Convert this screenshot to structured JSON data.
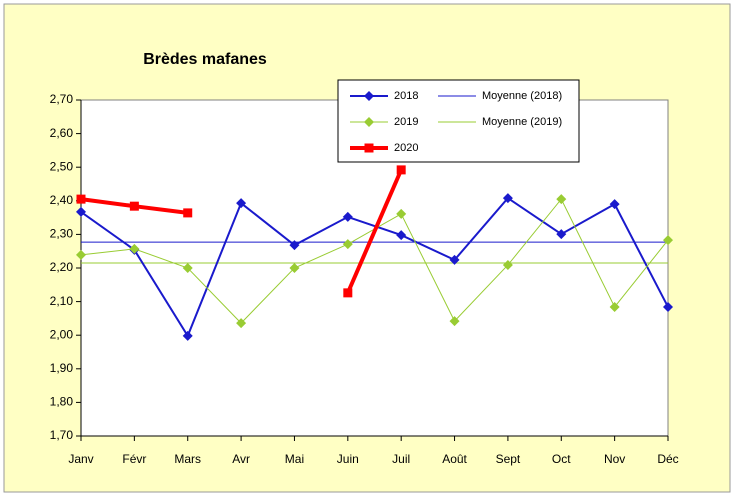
{
  "chart_data": {
    "type": "line",
    "title": "Brèdes mafanes",
    "categories": [
      "Janv",
      "Févr",
      "Mars",
      "Avr",
      "Mai",
      "Juin",
      "Juil",
      "Août",
      "Sept",
      "Oct",
      "Nov",
      "Déc"
    ],
    "series": [
      {
        "name": "2018",
        "color": "#1a1acc",
        "marker": "diamond",
        "values": [
          2.367,
          2.254,
          1.998,
          2.393,
          2.268,
          2.352,
          2.298,
          2.224,
          2.408,
          2.301,
          2.39,
          2.084
        ]
      },
      {
        "name": "2019",
        "color": "#99cc33",
        "marker": "diamond",
        "values": [
          2.239,
          2.257,
          2.2,
          2.036,
          2.2,
          2.271,
          2.361,
          2.042,
          2.209,
          2.405,
          2.084,
          2.283
        ]
      },
      {
        "name": "2020",
        "color": "#ff0000",
        "marker": "square",
        "values": [
          2.405,
          2.384,
          2.364,
          null,
          null,
          2.126,
          2.492,
          null,
          null,
          null,
          null,
          null
        ]
      }
    ],
    "reference_lines": [
      {
        "name": "Moyenne (2018)",
        "color": "#1a1acc",
        "value": 2.277
      },
      {
        "name": "Moyenne (2019)",
        "color": "#99cc33",
        "value": 2.215
      }
    ],
    "ylim": [
      1.7,
      2.7
    ],
    "yticks": [
      {
        "value": 1.7,
        "label": "1,70"
      },
      {
        "value": 1.8,
        "label": "1,80"
      },
      {
        "value": 1.9,
        "label": "1,90"
      },
      {
        "value": 2.0,
        "label": "2,00"
      },
      {
        "value": 2.1,
        "label": "2,10"
      },
      {
        "value": 2.2,
        "label": "2,20"
      },
      {
        "value": 2.3,
        "label": "2,30"
      },
      {
        "value": 2.4,
        "label": "2,40"
      },
      {
        "value": 2.5,
        "label": "2,50"
      },
      {
        "value": 2.6,
        "label": "2,60"
      },
      {
        "value": 2.7,
        "label": "2,70"
      }
    ],
    "grid": false
  }
}
